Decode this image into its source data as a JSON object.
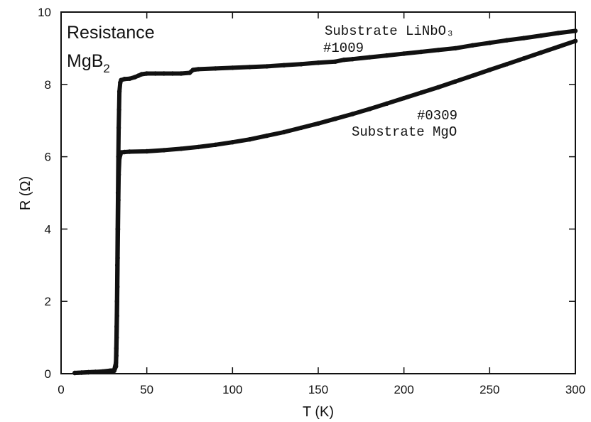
{
  "chart_data": {
    "type": "scatter",
    "title": "Resistance",
    "title_line2": "MgB",
    "title_subscript": "2",
    "xlabel": "T (K)",
    "ylabel": "R (Ω)",
    "xlim": [
      0,
      300
    ],
    "ylim": [
      0,
      10
    ],
    "x_ticks": [
      "0",
      "50",
      "100",
      "150",
      "200",
      "250",
      "300"
    ],
    "y_ticks": [
      "0",
      "2",
      "4",
      "6",
      "8",
      "10"
    ],
    "grid": false,
    "marker_color": "#111111",
    "series": [
      {
        "label_substrate": "Substrate LiNbO₃",
        "label_sample": "#1009",
        "x": [
          8,
          12,
          16,
          20,
          24,
          28,
          31,
          32,
          32.2,
          32.4,
          32.6,
          32.8,
          33,
          33.2,
          33.4,
          33.6,
          33.8,
          34,
          34.5,
          35,
          37,
          40,
          43,
          45,
          47,
          50,
          55,
          60,
          65,
          70,
          75,
          77,
          80,
          90,
          100,
          110,
          120,
          130,
          140,
          150,
          160,
          165,
          170,
          180,
          190,
          200,
          210,
          220,
          230,
          240,
          250,
          260,
          270,
          280,
          290,
          300
        ],
        "y": [
          0.02,
          0.03,
          0.04,
          0.05,
          0.06,
          0.08,
          0.1,
          0.3,
          0.7,
          1.3,
          2.0,
          3.0,
          4.0,
          5.0,
          6.0,
          6.8,
          7.3,
          7.8,
          8.05,
          8.12,
          8.15,
          8.16,
          8.2,
          8.24,
          8.28,
          8.3,
          8.3,
          8.3,
          8.3,
          8.3,
          8.32,
          8.4,
          8.42,
          8.44,
          8.46,
          8.48,
          8.5,
          8.53,
          8.56,
          8.6,
          8.63,
          8.68,
          8.7,
          8.75,
          8.8,
          8.85,
          8.9,
          8.95,
          9.0,
          9.08,
          9.15,
          9.22,
          9.28,
          9.35,
          9.42,
          9.48
        ]
      },
      {
        "label_sample": "#0309",
        "label_substrate": "Substrate MgO",
        "x": [
          8,
          12,
          16,
          20,
          24,
          28,
          31,
          32,
          32.2,
          32.4,
          32.6,
          32.8,
          33,
          33.2,
          33.4,
          33.6,
          34,
          35,
          37,
          40,
          50,
          60,
          70,
          80,
          90,
          100,
          110,
          120,
          130,
          140,
          150,
          160,
          170,
          180,
          190,
          200,
          210,
          220,
          230,
          240,
          250,
          260,
          270,
          280,
          290,
          300
        ],
        "y": [
          0.02,
          0.03,
          0.04,
          0.05,
          0.05,
          0.06,
          0.08,
          0.2,
          0.5,
          1.0,
          1.6,
          2.4,
          3.2,
          4.0,
          4.8,
          5.5,
          5.95,
          6.12,
          6.13,
          6.14,
          6.15,
          6.18,
          6.22,
          6.27,
          6.33,
          6.4,
          6.48,
          6.58,
          6.68,
          6.8,
          6.92,
          7.05,
          7.18,
          7.32,
          7.47,
          7.62,
          7.77,
          7.92,
          8.08,
          8.24,
          8.4,
          8.56,
          8.72,
          8.88,
          9.04,
          9.2
        ]
      }
    ]
  }
}
